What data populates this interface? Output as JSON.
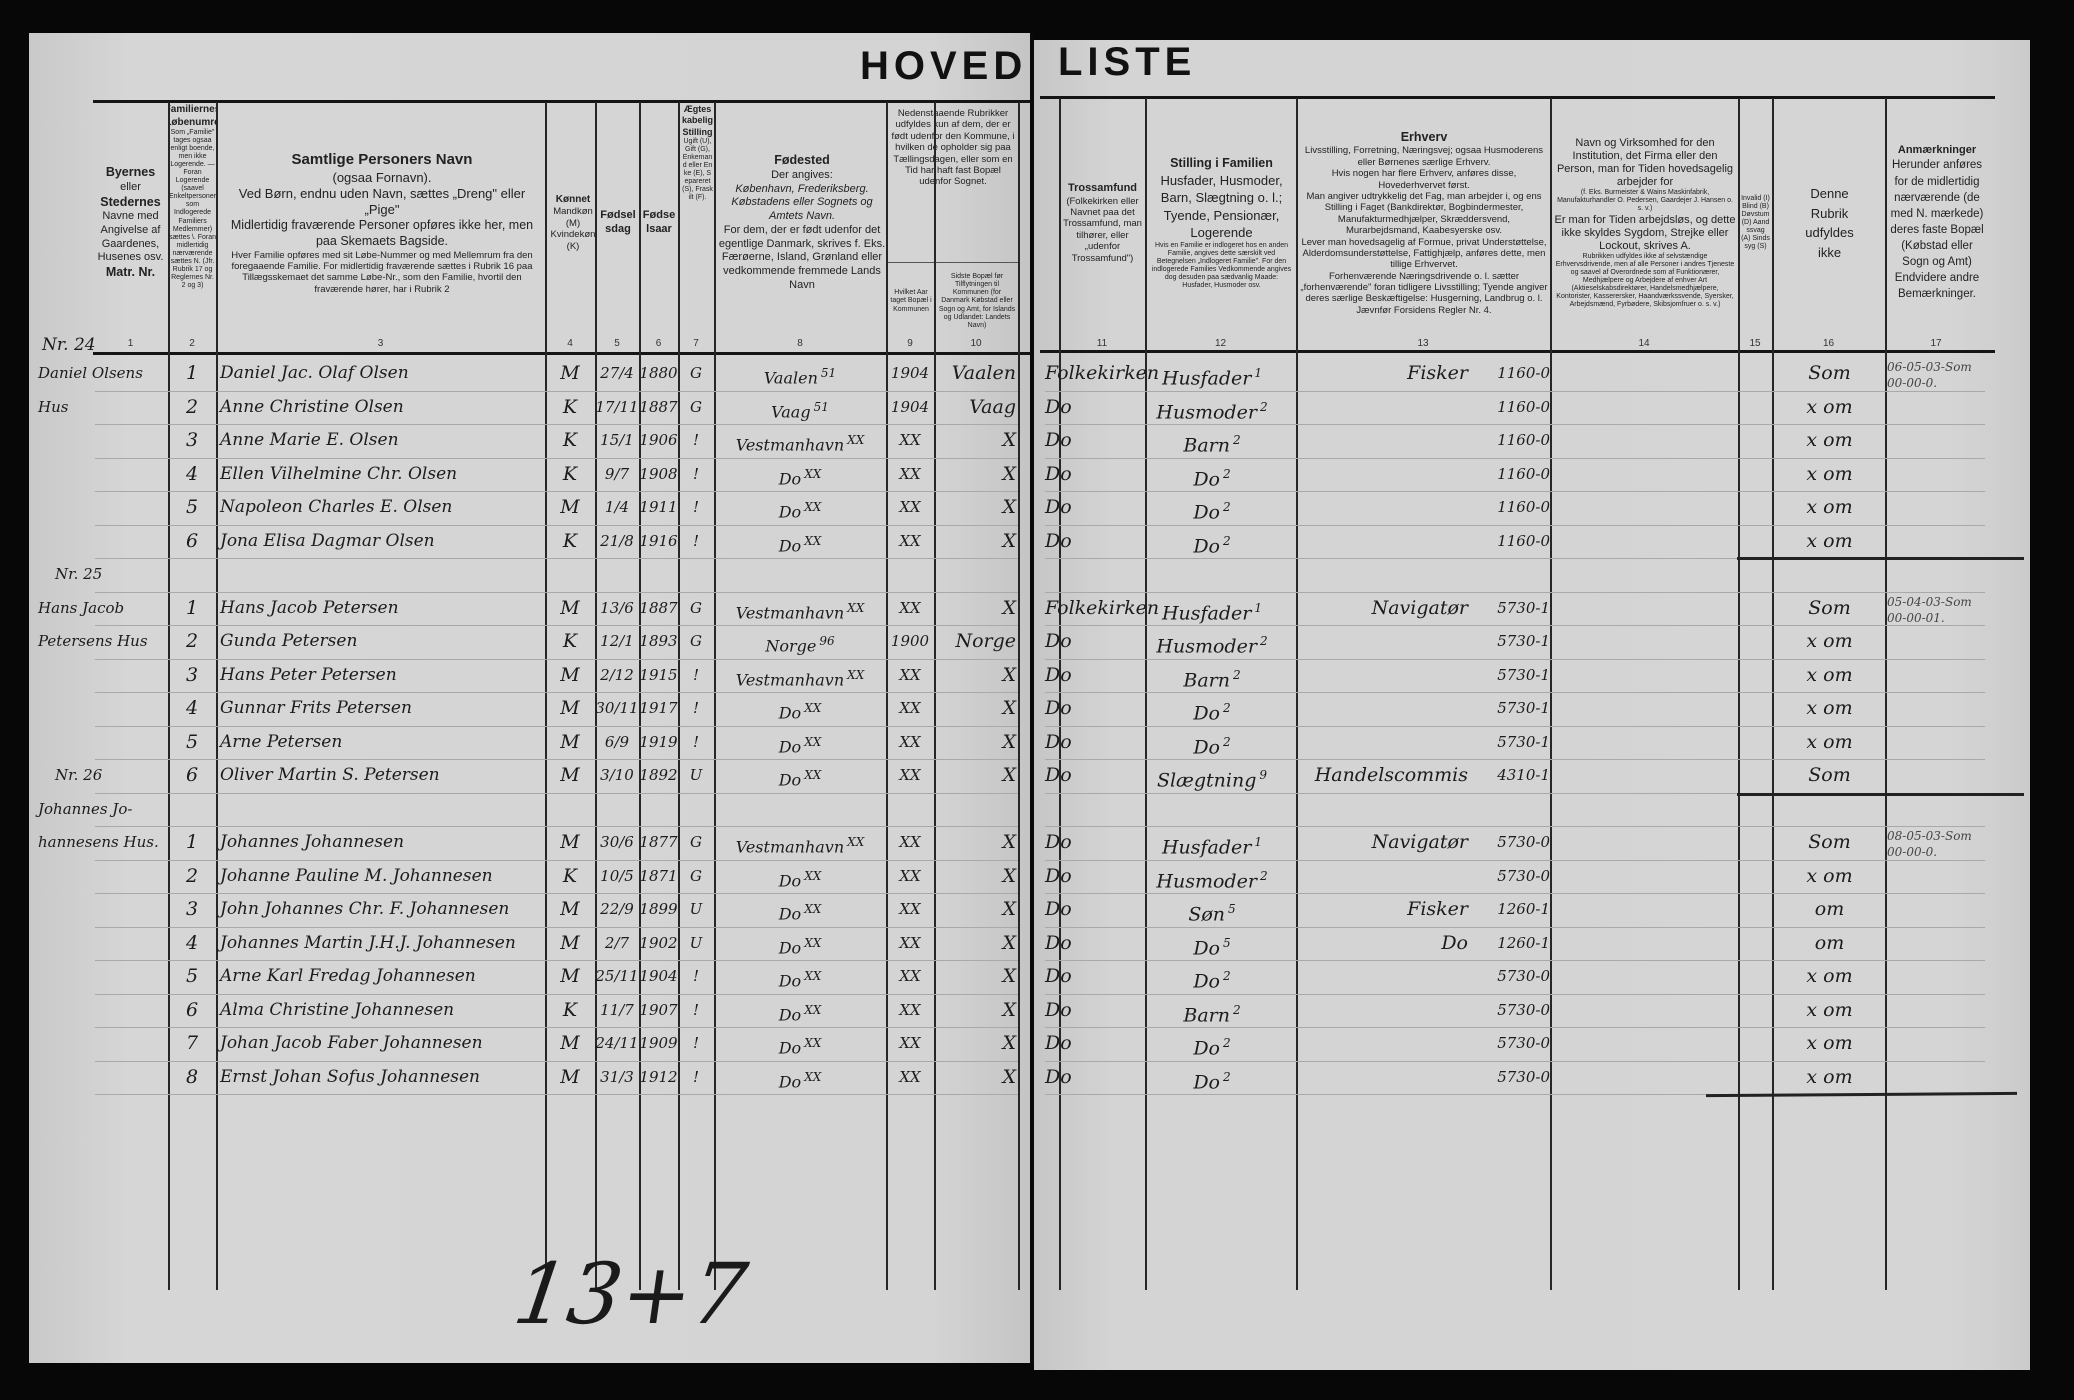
{
  "title_left": "HOVED",
  "title_right": "LISTE",
  "first_household_label": "Nr. 24",
  "header": {
    "c1": {
      "lines": [
        "Byernes",
        "eller",
        "Stedernes",
        "Navne med",
        "Angivelse af",
        "Gaardenes,",
        "Husenes osv.",
        "Matr. Nr."
      ]
    },
    "c2": {
      "title": "Familiernes Løbenumre",
      "note": "Som „Familie\" tages ogsaa enligt boende, men ikke Logerende. — Foran Logerende (saavel Enkeltpersoner som Indlogerede Familiers Medlemmer) sættes \\. Foran midlertidig nærværende sættes N. (Jfr. Rubrik 17 og Reglernes Nr. 2 og 3)"
    },
    "c3": {
      "title": "Samtlige Personers Navn",
      "sub": "(ogsaa Fornavn).",
      "l1": "Ved Børn, endnu uden Navn, sættes „Dreng\" eller „Pige\"",
      "l2": "Midlertidig fraværende Personer opføres ikke her, men paa Skemaets Bagside.",
      "l3": "Hver Familie opføres med sit Løbe-Nummer og med Mellemrum fra den foregaaende Familie. For midlertidig fraværende sættes i Rubrik 16 paa Tillægsskemaet det samme Løbe-Nr., som den Familie, hvortil den fraværende hører, har i Rubrik 2"
    },
    "c4": {
      "title": "Kønnet",
      "sub": "Mandkøn (M) Kvindekøn (K)"
    },
    "c5": {
      "title": "Fødselsdag"
    },
    "c6": {
      "title": "Fødselsaar"
    },
    "c7": {
      "title": "Ægteskabelig Stilling",
      "sub": "Ugift (U), Gift (G), Enkemand eller Enke (E), Separeret (S), Fraskilt (F)."
    },
    "c8": {
      "title": "Fødested",
      "l1": "Der angives:",
      "l2": "København, Frederiksberg. Købstadens eller Sognets og Amtets Navn.",
      "l3": "For dem, der er født udenfor det egentlige Danmark, skrives f. Eks. Færøerne, Island, Grønland eller vedkommende fremmede Lands Navn"
    },
    "c9_10": {
      "text": "Nedenstaaende Rubrikker udfyldes kun af dem, der er født udenfor den Kommune, i hvilken de opholder sig paa Tællingsdagen, eller som en Tid har haft fast Bopæl udenfor Sognet."
    },
    "c9": {
      "text": "Hvilket Aar taget Bopæl i Kommunen"
    },
    "c10": {
      "text": "Sidste Bopæl før Tilflytningen til Kommunen (for Danmark Købstad eller Sogn og Amt, for Islands og Udlandet: Landets Navn)"
    },
    "c11": {
      "title": "Trossamfund",
      "sub": "(Folkekirken eller Navnet paa det Trossamfund, man tilhører, eller „udenfor Trossamfund\")"
    },
    "c12": {
      "title": "Stilling i Familien",
      "sub": "Husfader, Husmoder, Barn, Slægtning o. l.; Tyende, Pensionær, Logerende",
      "note": "Hvis en Familie er indlogeret hos en anden Familie, angives dette særskilt ved Betegnelsen „Indlogeret Familie\". For den indlogerede Families Vedkommende angives dog desuden paa sædvanlig Maade: Husfader, Husmoder osv."
    },
    "c13": {
      "title": "Erhverv",
      "l1": "Livsstilling, Forretning, Næringsvej; ogsaa Husmoderens eller Børnenes særlige Erhverv.",
      "l2": "Hvis nogen har flere Erhverv, anføres disse, Hovederhvervet først.",
      "l3": "Man angiver udtrykkelig det Fag, man arbejder i, og ens Stilling i Faget (Bankdirektør, Bogbindermester, Manufakturmedhjælper, Skræddersvend, Murarbejdsmand, Kaabesyerske osv.",
      "l4": "Lever man hovedsagelig af Formue, privat Understøttelse, Alderdomsunderstøttelse, Fattighjælp, anføres dette, men tillige Erhvervet.",
      "l5": "Forhenværende Næringsdrivende o. l. sætter „forhenværende\" foran tidligere Livsstilling; Tyende angiver deres særlige Beskæftigelse: Husgerning, Landbrug o. l. Jævnfør Forsidens Regler Nr. 4."
    },
    "c14": {
      "l1": "Navn og Virksomhed for den Institution, det Firma eller den Person, man for Tiden hovedsagelig arbejder for",
      "l2": "(f. Eks. Burmeister & Wains Maskinfabrik, Manufakturhandler O. Pedersen, Gaardejer J. Hansen o. s. v.)",
      "l3": "Er man for Tiden arbejdsløs, og dette ikke skyldes Sygdom, Strejke eller Lockout, skrives A.",
      "l4": "Rubrikken udfyldes ikke af selvstændige Erhvervsdrivende, men af alle Personer i andres Tjeneste og saavel af Overordnede som af Funktionærer, Medhjælpere og Arbejdere af enhver Art (Aktieselskabsdirektører, Handelsmedhjælpere, Kontorister, Kasserersker, Haandværkssvende, Syersker, Arbejdsmænd, Fyrbødere, Skibsjomfruer o. s. v.)"
    },
    "c15": {
      "text": "Invalid (I) Blind (B) Døvstum (D) Aandssvag (A) Sindssyg (S)"
    },
    "c16": {
      "lines": [
        "Denne",
        "Rubrik",
        "udfyldes",
        "ikke"
      ]
    },
    "c17": {
      "title": "Anmærkninger",
      "sub": "Herunder anføres for de midlertidig nærværende (de med N. mærkede) deres faste Bopæl (Købstad eller Sogn og Amt) Endvidere andre Bemærkninger."
    }
  },
  "column_numbers": [
    "1",
    "2",
    "3",
    "4",
    "5",
    "6",
    "7",
    "8",
    "9",
    "10",
    "11",
    "12",
    "13",
    "14",
    "15",
    "16",
    "17"
  ],
  "rows": [
    {
      "place": "Daniel Olsens",
      "no": "1",
      "name": "Daniel Jac. Olaf Olsen",
      "sex": "M",
      "day": "27/4",
      "year": "1880",
      "marital": "G",
      "birthplace": "Vaalen",
      "bnote": "51",
      "moved": "1904",
      "prev": "Vaalen",
      "religion": "Folkekirken",
      "position": "Husfader",
      "pcode": "1",
      "occupation": "Fisker",
      "income": "1160-0",
      "c16": "Som",
      "remark": "06-05-03-Som\n00-00-0."
    },
    {
      "place": "Hus",
      "no": "2",
      "name": "Anne Christine Olsen",
      "sex": "K",
      "day": "17/11",
      "year": "1887",
      "marital": "G",
      "birthplace": "Vaag",
      "bnote": "51",
      "moved": "1904",
      "prev": "Vaag",
      "religion": "Do",
      "position": "Husmoder",
      "pcode": "2",
      "occupation": "",
      "income": "1160-0",
      "c16": "x om",
      "remark": ""
    },
    {
      "place": "",
      "no": "3",
      "name": "Anne Marie E. Olsen",
      "sex": "K",
      "day": "15/1",
      "year": "1906",
      "marital": "!",
      "birthplace": "Vestmanhavn",
      "bnote": "XX",
      "moved": "XX",
      "prev": "X",
      "religion": "Do",
      "position": "Barn",
      "pcode": "2",
      "occupation": "",
      "income": "1160-0",
      "c16": "x om",
      "remark": ""
    },
    {
      "place": "",
      "no": "4",
      "name": "Ellen Vilhelmine Chr. Olsen",
      "sex": "K",
      "day": "9/7",
      "year": "1908",
      "marital": "!",
      "birthplace": "Do",
      "bnote": "XX",
      "moved": "XX",
      "prev": "X",
      "religion": "Do",
      "position": "Do",
      "pcode": "2",
      "occupation": "",
      "income": "1160-0",
      "c16": "x om",
      "remark": ""
    },
    {
      "place": "",
      "no": "5",
      "name": "Napoleon Charles E. Olsen",
      "sex": "M",
      "day": "1/4",
      "year": "1911",
      "marital": "!",
      "birthplace": "Do",
      "bnote": "XX",
      "moved": "XX",
      "prev": "X",
      "religion": "Do",
      "position": "Do",
      "pcode": "2",
      "occupation": "",
      "income": "1160-0",
      "c16": "x om",
      "remark": ""
    },
    {
      "place": "",
      "no": "6",
      "name": "Jona Elisa Dagmar Olsen",
      "sex": "K",
      "day": "21/8",
      "year": "1916",
      "marital": "!",
      "birthplace": "Do",
      "bnote": "XX",
      "moved": "XX",
      "prev": "X",
      "religion": "Do",
      "position": "Do",
      "pcode": "2",
      "occupation": "",
      "income": "1160-0",
      "c16": "x om",
      "remark": ""
    },
    {
      "place": "Nr. 25",
      "no": "",
      "name": "",
      "sex": "",
      "day": "",
      "year": "",
      "marital": "",
      "birthplace": "",
      "bnote": "",
      "moved": "",
      "prev": "",
      "religion": "",
      "position": "",
      "pcode": "",
      "occupation": "",
      "income": "",
      "c16": "",
      "remark": ""
    },
    {
      "place": "Hans Jacob",
      "no": "1",
      "name": "Hans Jacob Petersen",
      "sex": "M",
      "day": "13/6",
      "year": "1887",
      "marital": "G",
      "birthplace": "Vestmanhavn",
      "bnote": "XX",
      "moved": "XX",
      "prev": "X",
      "religion": "Folkekirken",
      "position": "Husfader",
      "pcode": "1",
      "occupation": "Navigatør",
      "income": "5730-1",
      "c16": "Som",
      "remark": "05-04-03-Som\n00-00-01."
    },
    {
      "place": "Petersens Hus",
      "no": "2",
      "name": "Gunda Petersen",
      "sex": "K",
      "day": "12/1",
      "year": "1893",
      "marital": "G",
      "birthplace": "Norge",
      "bnote": "96",
      "moved": "1900",
      "prev": "Norge",
      "religion": "Do",
      "position": "Husmoder",
      "pcode": "2",
      "occupation": "",
      "income": "5730-1",
      "c16": "x om",
      "remark": ""
    },
    {
      "place": "",
      "no": "3",
      "name": "Hans Peter Petersen",
      "sex": "M",
      "day": "2/12",
      "year": "1915",
      "marital": "!",
      "birthplace": "Vestmanhavn",
      "bnote": "XX",
      "moved": "XX",
      "prev": "X",
      "religion": "Do",
      "position": "Barn",
      "pcode": "2",
      "occupation": "",
      "income": "5730-1",
      "c16": "x om",
      "remark": ""
    },
    {
      "place": "",
      "no": "4",
      "name": "Gunnar Frits Petersen",
      "sex": "M",
      "day": "30/11",
      "year": "1917",
      "marital": "!",
      "birthplace": "Do",
      "bnote": "XX",
      "moved": "XX",
      "prev": "X",
      "religion": "Do",
      "position": "Do",
      "pcode": "2",
      "occupation": "",
      "income": "5730-1",
      "c16": "x om",
      "remark": ""
    },
    {
      "place": "",
      "no": "5",
      "name": "Arne Petersen",
      "sex": "M",
      "day": "6/9",
      "year": "1919",
      "marital": "!",
      "birthplace": "Do",
      "bnote": "XX",
      "moved": "XX",
      "prev": "X",
      "religion": "Do",
      "position": "Do",
      "pcode": "2",
      "occupation": "",
      "income": "5730-1",
      "c16": "x om",
      "remark": ""
    },
    {
      "place": "Nr. 26",
      "no": "6",
      "name": "Oliver Martin S. Petersen",
      "sex": "M",
      "day": "3/10",
      "year": "1892",
      "marital": "U",
      "birthplace": "Do",
      "bnote": "XX",
      "moved": "XX",
      "prev": "X",
      "religion": "Do",
      "position": "Slægtning",
      "pcode": "9",
      "occupation": "Handelscommis",
      "income": "4310-1",
      "c16": "Som",
      "remark": ""
    },
    {
      "place": "Johannes Jo-",
      "no": "",
      "name": "",
      "sex": "",
      "day": "",
      "year": "",
      "marital": "",
      "birthplace": "",
      "bnote": "",
      "moved": "",
      "prev": "",
      "religion": "",
      "position": "",
      "pcode": "",
      "occupation": "",
      "income": "",
      "c16": "",
      "remark": ""
    },
    {
      "place": "hannesens Hus.",
      "no": "1",
      "name": "Johannes Johannesen",
      "sex": "M",
      "day": "30/6",
      "year": "1877",
      "marital": "G",
      "birthplace": "Vestmanhavn",
      "bnote": "XX",
      "moved": "XX",
      "prev": "X",
      "religion": "Do",
      "position": "Husfader",
      "pcode": "1",
      "occupation": "Navigatør",
      "income": "5730-0",
      "c16": "Som",
      "remark": "08-05-03-Som\n00-00-0."
    },
    {
      "place": "",
      "no": "2",
      "name": "Johanne Pauline M. Johannesen",
      "sex": "K",
      "day": "10/5",
      "year": "1871",
      "marital": "G",
      "birthplace": "Do",
      "bnote": "XX",
      "moved": "XX",
      "prev": "X",
      "religion": "Do",
      "position": "Husmoder",
      "pcode": "2",
      "occupation": "",
      "income": "5730-0",
      "c16": "x om",
      "remark": ""
    },
    {
      "place": "",
      "no": "3",
      "name": "John Johannes Chr. F. Johannesen",
      "sex": "M",
      "day": "22/9",
      "year": "1899",
      "marital": "U",
      "birthplace": "Do",
      "bnote": "XX",
      "moved": "XX",
      "prev": "X",
      "religion": "Do",
      "position": "Søn",
      "pcode": "5",
      "occupation": "Fisker",
      "income": "1260-1",
      "c16": "om",
      "remark": ""
    },
    {
      "place": "",
      "no": "4",
      "name": "Johannes Martin J.H.J. Johannesen",
      "sex": "M",
      "day": "2/7",
      "year": "1902",
      "marital": "U",
      "birthplace": "Do",
      "bnote": "XX",
      "moved": "XX",
      "prev": "X",
      "religion": "Do",
      "position": "Do",
      "pcode": "5",
      "occupation": "Do",
      "income": "1260-1",
      "c16": "om",
      "remark": ""
    },
    {
      "place": "",
      "no": "5",
      "name": "Arne Karl Fredag Johannesen",
      "sex": "M",
      "day": "25/11",
      "year": "1904",
      "marital": "!",
      "birthplace": "Do",
      "bnote": "XX",
      "moved": "XX",
      "prev": "X",
      "religion": "Do",
      "position": "Do",
      "pcode": "2",
      "occupation": "",
      "income": "5730-0",
      "c16": "x om",
      "remark": ""
    },
    {
      "place": "",
      "no": "6",
      "name": "Alma Christine Johannesen",
      "sex": "K",
      "day": "11/7",
      "year": "1907",
      "marital": "!",
      "birthplace": "Do",
      "bnote": "XX",
      "moved": "XX",
      "prev": "X",
      "religion": "Do",
      "position": "Barn",
      "pcode": "2",
      "occupation": "",
      "income": "5730-0",
      "c16": "x om",
      "remark": ""
    },
    {
      "place": "",
      "no": "7",
      "name": "Johan Jacob Faber Johannesen",
      "sex": "M",
      "day": "24/11",
      "year": "1909",
      "marital": "!",
      "birthplace": "Do",
      "bnote": "XX",
      "moved": "XX",
      "prev": "X",
      "religion": "Do",
      "position": "Do",
      "pcode": "2",
      "occupation": "",
      "income": "5730-0",
      "c16": "x om",
      "remark": ""
    },
    {
      "place": "",
      "no": "8",
      "name": "Ernst Johan Sofus Johannesen",
      "sex": "M",
      "day": "31/3",
      "year": "1912",
      "marital": "!",
      "birthplace": "Do",
      "bnote": "XX",
      "moved": "XX",
      "prev": "X",
      "religion": "Do",
      "position": "Do",
      "pcode": "2",
      "occupation": "",
      "income": "5730-0",
      "c16": "x om",
      "remark": ""
    }
  ],
  "total_note": "13+7"
}
